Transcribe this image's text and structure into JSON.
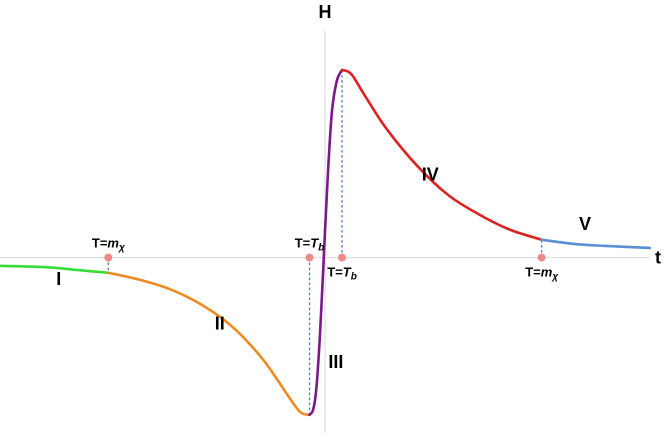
{
  "chart_data": {
    "type": "line",
    "x_axis_label": "t",
    "y_axis_label": "H",
    "xlim": [
      -10.5,
      10.5
    ],
    "ylim": [
      -1.25,
      1.65
    ],
    "grid": false,
    "series": [
      {
        "name": "I",
        "color": "#33dd33",
        "points": [
          [
            -10.5,
            -0.06
          ],
          [
            -9,
            -0.07
          ],
          [
            -8,
            -0.09
          ],
          [
            -7,
            -0.11
          ]
        ]
      },
      {
        "name": "II",
        "color": "#ee8a22",
        "points": [
          [
            -7,
            -0.11
          ],
          [
            -6,
            -0.16
          ],
          [
            -5,
            -0.23
          ],
          [
            -4,
            -0.34
          ],
          [
            -3,
            -0.5
          ],
          [
            -2,
            -0.74
          ],
          [
            -1.2,
            -1.0
          ],
          [
            -0.8,
            -1.12
          ],
          [
            -0.5,
            -1.14
          ]
        ]
      },
      {
        "name": "III",
        "color": "#7a1a8a",
        "points": [
          [
            -0.5,
            -1.14
          ],
          [
            -0.38,
            -1.1
          ],
          [
            -0.28,
            -0.95
          ],
          [
            -0.16,
            -0.55
          ],
          [
            -0.04,
            0.0
          ],
          [
            0.08,
            0.55
          ],
          [
            0.22,
            1.05
          ],
          [
            0.38,
            1.28
          ],
          [
            0.55,
            1.36
          ]
        ]
      },
      {
        "name": "IV",
        "color": "#dd2222",
        "points": [
          [
            0.55,
            1.36
          ],
          [
            0.85,
            1.33
          ],
          [
            1.3,
            1.17
          ],
          [
            2,
            0.93
          ],
          [
            3,
            0.66
          ],
          [
            4,
            0.45
          ],
          [
            5,
            0.31
          ],
          [
            6,
            0.2
          ],
          [
            7,
            0.13
          ]
        ]
      },
      {
        "name": "V",
        "color": "#5b8fd4",
        "points": [
          [
            7,
            0.13
          ],
          [
            8,
            0.1
          ],
          [
            9,
            0.085
          ],
          [
            10.5,
            0.07
          ]
        ]
      }
    ],
    "annotations": [
      {
        "label_prefix": "T=",
        "label_var": "m",
        "label_sub": "χ",
        "x": -7,
        "point_y": 0,
        "curve_y": -0.11,
        "label_side": "above"
      },
      {
        "label_prefix": "T=",
        "label_var": "T",
        "label_sub": "b",
        "x": -0.5,
        "point_y": 0,
        "curve_y": -1.14,
        "label_side": "above"
      },
      {
        "label_prefix": "T=",
        "label_var": "T",
        "label_sub": "b",
        "x": 0.55,
        "point_y": 0,
        "curve_y": 1.36,
        "label_side": "below"
      },
      {
        "label_prefix": "T=",
        "label_var": "m",
        "label_sub": "χ",
        "x": 7,
        "point_y": 0,
        "curve_y": 0.13,
        "label_side": "below"
      }
    ],
    "region_labels": [
      {
        "text": "I",
        "x": -8.6,
        "y": -0.2
      },
      {
        "text": "II",
        "x": -3.4,
        "y": -0.52
      },
      {
        "text": "III",
        "x": 0.35,
        "y": -0.8
      },
      {
        "text": "IV",
        "x": 3.4,
        "y": 0.56
      },
      {
        "text": "V",
        "x": 8.4,
        "y": 0.2
      }
    ]
  }
}
